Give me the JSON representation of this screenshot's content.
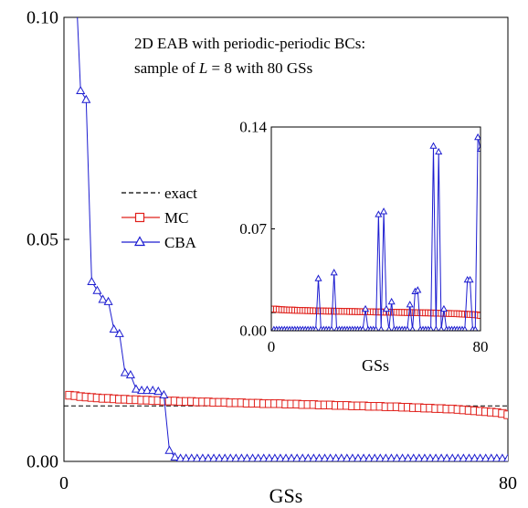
{
  "chart_data": {
    "type": "line",
    "annotation_line1": "2D EAB with periodic-periodic BCs:",
    "annotation_line2_prefix": "sample of ",
    "annotation_line2_var": "L",
    "annotation_line2_suffix": " = 8 with 80 GSs",
    "colors": {
      "exact": "#000000",
      "mc": "#e0201b",
      "cba": "#1c1cd0"
    },
    "main": {
      "xlabel": "GSs",
      "xlim": [
        0,
        80
      ],
      "ylim": [
        0,
        0.1
      ],
      "xticks": [
        0,
        80
      ],
      "xtick_labels": [
        "0",
        "80"
      ],
      "yticks": [
        0,
        0.05,
        0.1
      ],
      "ytick_labels": [
        "0.00",
        "0.05",
        "0.10"
      ],
      "legend_position": "center-left",
      "series": [
        {
          "name": "exact",
          "style": "dashed",
          "x": [
            0,
            80,
            80
          ],
          "y": [
            0.0125,
            0.0125,
            0.0
          ]
        },
        {
          "name": "MC",
          "marker": "square",
          "x": [
            1,
            2,
            3,
            4,
            5,
            6,
            7,
            8,
            9,
            10,
            11,
            12,
            13,
            14,
            15,
            16,
            17,
            18,
            19,
            20,
            21,
            22,
            23,
            24,
            25,
            26,
            27,
            28,
            29,
            30,
            31,
            32,
            33,
            34,
            35,
            36,
            37,
            38,
            39,
            40,
            41,
            42,
            43,
            44,
            45,
            46,
            47,
            48,
            49,
            50,
            51,
            52,
            53,
            54,
            55,
            56,
            57,
            58,
            59,
            60,
            61,
            62,
            63,
            64,
            65,
            66,
            67,
            68,
            69,
            70,
            71,
            72,
            73,
            74,
            75,
            76,
            77,
            78,
            79,
            80
          ],
          "y": [
            0.0149,
            0.0148,
            0.0146,
            0.0145,
            0.0144,
            0.0143,
            0.0142,
            0.0142,
            0.0141,
            0.014,
            0.014,
            0.0139,
            0.0139,
            0.0138,
            0.0138,
            0.0137,
            0.0137,
            0.0136,
            0.0136,
            0.0136,
            0.0135,
            0.0135,
            0.0135,
            0.0134,
            0.0134,
            0.0134,
            0.0133,
            0.0133,
            0.0133,
            0.0132,
            0.0132,
            0.0132,
            0.0131,
            0.0131,
            0.0131,
            0.013,
            0.013,
            0.013,
            0.013,
            0.0129,
            0.0129,
            0.0129,
            0.0128,
            0.0128,
            0.0128,
            0.0127,
            0.0127,
            0.0127,
            0.0126,
            0.0126,
            0.0126,
            0.0125,
            0.0125,
            0.0125,
            0.0124,
            0.0124,
            0.0124,
            0.0123,
            0.0123,
            0.0123,
            0.0122,
            0.0122,
            0.0121,
            0.0121,
            0.012,
            0.012,
            0.0119,
            0.0119,
            0.0118,
            0.0118,
            0.0117,
            0.0116,
            0.0115,
            0.0114,
            0.0113,
            0.0112,
            0.0111,
            0.011,
            0.0108,
            0.0105
          ]
        },
        {
          "name": "CBA",
          "marker": "triangle",
          "x": [
            1,
            2,
            3,
            4,
            5,
            6,
            7,
            8,
            9,
            10,
            11,
            12,
            13,
            14,
            15,
            16,
            17,
            18,
            19,
            20,
            21,
            22,
            23,
            24,
            25,
            26,
            27,
            28,
            29,
            30,
            31,
            32,
            33,
            34,
            35,
            36,
            37,
            38,
            39,
            40,
            41,
            42,
            43,
            44,
            45,
            46,
            47,
            48,
            49,
            50,
            51,
            52,
            53,
            54,
            55,
            56,
            57,
            58,
            59,
            60,
            61,
            62,
            63,
            64,
            65,
            66,
            67,
            68,
            69,
            70,
            71,
            72,
            73,
            74,
            75,
            76,
            77,
            78,
            79,
            80
          ],
          "y": [
            0.125,
            0.112,
            0.0835,
            0.0815,
            0.0405,
            0.0385,
            0.0365,
            0.036,
            0.0298,
            0.0288,
            0.02,
            0.0195,
            0.0163,
            0.016,
            0.016,
            0.016,
            0.0158,
            0.015,
            0.0025,
            0.001,
            0.0007,
            0.0007,
            0.0007,
            0.0007,
            0.0007,
            0.0007,
            0.0007,
            0.0007,
            0.0007,
            0.0007,
            0.0007,
            0.0007,
            0.0007,
            0.0007,
            0.0007,
            0.0007,
            0.0007,
            0.0007,
            0.0007,
            0.0007,
            0.0007,
            0.0007,
            0.0007,
            0.0007,
            0.0007,
            0.0007,
            0.0007,
            0.0007,
            0.0007,
            0.0007,
            0.0007,
            0.0007,
            0.0007,
            0.0007,
            0.0007,
            0.0007,
            0.0007,
            0.0007,
            0.0007,
            0.0007,
            0.0007,
            0.0007,
            0.0007,
            0.0007,
            0.0007,
            0.0007,
            0.0007,
            0.0007,
            0.0007,
            0.0007,
            0.0007,
            0.0007,
            0.0007,
            0.0007,
            0.0007,
            0.0007,
            0.0007,
            0.0007,
            0.0007,
            0.0007
          ]
        }
      ]
    },
    "inset": {
      "xlabel": "GSs",
      "xlim": [
        0,
        80
      ],
      "ylim": [
        0,
        0.14
      ],
      "xticks": [
        0,
        80
      ],
      "xtick_labels": [
        "0",
        "80"
      ],
      "yticks": [
        0,
        0.07,
        0.14
      ],
      "ytick_labels": [
        "0.00",
        "0.07",
        "0.14"
      ],
      "series": [
        {
          "name": "exact",
          "style": "dashed",
          "x": [
            0,
            80,
            80
          ],
          "y": [
            0.0125,
            0.0125,
            0.0
          ]
        },
        {
          "name": "MC",
          "marker": "square",
          "x": [
            1,
            2,
            3,
            4,
            5,
            6,
            7,
            8,
            9,
            10,
            11,
            12,
            13,
            14,
            15,
            16,
            17,
            18,
            19,
            20,
            21,
            22,
            23,
            24,
            25,
            26,
            27,
            28,
            29,
            30,
            31,
            32,
            33,
            34,
            35,
            36,
            37,
            38,
            39,
            40,
            41,
            42,
            43,
            44,
            45,
            46,
            47,
            48,
            49,
            50,
            51,
            52,
            53,
            54,
            55,
            56,
            57,
            58,
            59,
            60,
            61,
            62,
            63,
            64,
            65,
            66,
            67,
            68,
            69,
            70,
            71,
            72,
            73,
            74,
            75,
            76,
            77,
            78,
            79,
            80
          ],
          "y": [
            0.0149,
            0.0148,
            0.0146,
            0.0145,
            0.0144,
            0.0143,
            0.0142,
            0.0142,
            0.0141,
            0.014,
            0.014,
            0.0139,
            0.0139,
            0.0138,
            0.0138,
            0.0137,
            0.0137,
            0.0136,
            0.0136,
            0.0136,
            0.0135,
            0.0135,
            0.0135,
            0.0134,
            0.0134,
            0.0134,
            0.0133,
            0.0133,
            0.0133,
            0.0132,
            0.0132,
            0.0132,
            0.0131,
            0.0131,
            0.0131,
            0.013,
            0.013,
            0.013,
            0.013,
            0.0129,
            0.0129,
            0.0129,
            0.0128,
            0.0128,
            0.0128,
            0.0127,
            0.0127,
            0.0127,
            0.0126,
            0.0126,
            0.0126,
            0.0125,
            0.0125,
            0.0125,
            0.0124,
            0.0124,
            0.0124,
            0.0123,
            0.0123,
            0.0123,
            0.0122,
            0.0122,
            0.0121,
            0.0121,
            0.012,
            0.012,
            0.0119,
            0.0119,
            0.0118,
            0.0118,
            0.0117,
            0.0116,
            0.0115,
            0.0114,
            0.0113,
            0.0112,
            0.0111,
            0.011,
            0.0108,
            0.0105
          ]
        },
        {
          "name": "CBA",
          "marker": "triangle",
          "x": [
            1,
            2,
            3,
            4,
            5,
            6,
            7,
            8,
            9,
            10,
            11,
            12,
            13,
            14,
            15,
            16,
            17,
            18,
            19,
            20,
            21,
            22,
            23,
            24,
            25,
            26,
            27,
            28,
            29,
            30,
            31,
            32,
            33,
            34,
            35,
            36,
            37,
            38,
            39,
            40,
            41,
            42,
            43,
            44,
            45,
            46,
            47,
            48,
            49,
            50,
            51,
            52,
            53,
            54,
            55,
            56,
            57,
            58,
            59,
            60,
            61,
            62,
            63,
            64,
            65,
            66,
            67,
            68,
            69,
            70,
            71,
            72,
            73,
            74,
            75,
            76,
            77,
            78,
            79,
            80
          ],
          "y": [
            0.0008,
            0.0008,
            0.0008,
            0.0008,
            0.0008,
            0.0008,
            0.0008,
            0.0008,
            0.0008,
            0.0008,
            0.0008,
            0.0008,
            0.0008,
            0.0008,
            0.0008,
            0.0008,
            0.0008,
            0.036,
            0.0008,
            0.0008,
            0.0008,
            0.0008,
            0.0008,
            0.04,
            0.0008,
            0.0008,
            0.0008,
            0.0008,
            0.0008,
            0.0008,
            0.0008,
            0.0008,
            0.0008,
            0.0008,
            0.0008,
            0.015,
            0.0008,
            0.0008,
            0.0008,
            0.0008,
            0.08,
            0.0008,
            0.082,
            0.015,
            0.0008,
            0.02,
            0.0008,
            0.0008,
            0.0008,
            0.0008,
            0.0008,
            0.0008,
            0.018,
            0.0008,
            0.027,
            0.028,
            0.0008,
            0.0008,
            0.0008,
            0.0008,
            0.0008,
            0.127,
            0.0008,
            0.123,
            0.0008,
            0.015,
            0.0008,
            0.0008,
            0.0008,
            0.0008,
            0.0008,
            0.0008,
            0.0008,
            0.0008,
            0.035,
            0.035,
            0.0008,
            0.0008,
            0.133,
            0.125
          ]
        }
      ]
    },
    "legend": {
      "entries": [
        {
          "name": "exact",
          "style": "dashed"
        },
        {
          "name": "MC",
          "marker": "square"
        },
        {
          "name": "CBA",
          "marker": "triangle"
        }
      ]
    }
  }
}
